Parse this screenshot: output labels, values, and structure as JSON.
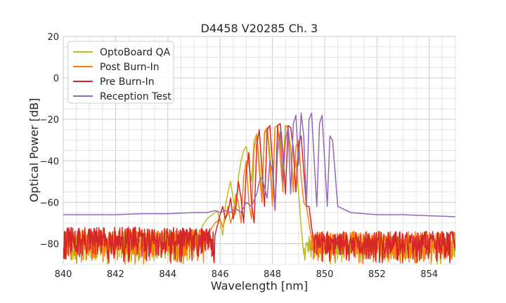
{
  "chart_data": {
    "type": "line",
    "title": "D4458 V20285 Ch. 3",
    "xlabel": "Wavelength [nm]",
    "ylabel": "Optical Power [dB]",
    "xlim": [
      840,
      855
    ],
    "ylim": [
      -90,
      20
    ],
    "xticks": [
      840,
      842,
      844,
      846,
      848,
      850,
      852,
      854
    ],
    "yticks": [
      20,
      0,
      -20,
      -40,
      -60,
      -80
    ],
    "xtick_labels": [
      "840",
      "842",
      "844",
      "846",
      "848",
      "850",
      "852",
      "854"
    ],
    "ytick_labels": [
      "20",
      "0",
      "−20",
      "−40",
      "−60",
      "−80"
    ],
    "grid": true,
    "legend_position": "top-left",
    "series": [
      {
        "name": "OptoBoard QA",
        "color": "#bcbd22",
        "noise": {
          "x_range": [
            840,
            845.3
          ],
          "y_range": [
            -90,
            -74
          ],
          "count": 380,
          "seed": 11
        },
        "noise2": {
          "x_range": [
            849.2,
            855
          ],
          "y_range": [
            -90,
            -76
          ],
          "count": 320,
          "seed": 12
        },
        "x": [
          845.3,
          845.5,
          845.7,
          845.9,
          846.0,
          846.1,
          846.2,
          846.3,
          846.4,
          846.5,
          846.6,
          846.7,
          846.8,
          846.9,
          847.0,
          847.1,
          847.2,
          847.3,
          847.4,
          847.5,
          847.6,
          847.7,
          847.8,
          847.9,
          848.0,
          848.1,
          848.2,
          848.3,
          848.4,
          848.5,
          848.6,
          848.7,
          848.8,
          848.9,
          849.0,
          849.1,
          849.2
        ],
        "y": [
          -72,
          -68,
          -66,
          -64,
          -70,
          -76,
          -62,
          -55,
          -50,
          -58,
          -66,
          -48,
          -40,
          -35,
          -33,
          -42,
          -50,
          -30,
          -27,
          -40,
          -55,
          -28,
          -24,
          -35,
          -58,
          -24,
          -23,
          -32,
          -45,
          -23,
          -24,
          -34,
          -50,
          -40,
          -55,
          -72,
          -85
        ]
      },
      {
        "name": "Post Burn-In",
        "color": "#ff7f0e",
        "noise": {
          "x_range": [
            840,
            845.6
          ],
          "y_range": [
            -90,
            -73
          ],
          "count": 380,
          "seed": 21
        },
        "noise2": {
          "x_range": [
            849.5,
            855
          ],
          "y_range": [
            -90,
            -74
          ],
          "count": 320,
          "seed": 22
        },
        "x": [
          845.6,
          845.8,
          846.0,
          846.1,
          846.2,
          846.3,
          846.4,
          846.5,
          846.6,
          846.7,
          846.8,
          846.9,
          847.0,
          847.1,
          847.2,
          847.3,
          847.4,
          847.5,
          847.6,
          847.7,
          847.8,
          847.9,
          848.0,
          848.1,
          848.2,
          848.3,
          848.4,
          848.5,
          848.6,
          848.7,
          848.8,
          848.9,
          849.0,
          849.1,
          849.2,
          849.3,
          849.4,
          849.5
        ],
        "y": [
          -74,
          -70,
          -68,
          -72,
          -68,
          -62,
          -70,
          -66,
          -56,
          -60,
          -70,
          -48,
          -40,
          -60,
          -68,
          -34,
          -28,
          -45,
          -60,
          -26,
          -24,
          -40,
          -62,
          -24,
          -23,
          -38,
          -55,
          -23,
          -24,
          -36,
          -55,
          -33,
          -30,
          -48,
          -60,
          -62,
          -70,
          -78
        ]
      },
      {
        "name": "Pre Burn-In",
        "color": "#d62728",
        "noise": {
          "x_range": [
            840,
            845.8
          ],
          "y_range": [
            -90,
            -72
          ],
          "count": 400,
          "seed": 31
        },
        "noise2": {
          "x_range": [
            849.6,
            855
          ],
          "y_range": [
            -90,
            -74
          ],
          "count": 330,
          "seed": 32
        },
        "x": [
          845.8,
          846.0,
          846.1,
          846.2,
          846.3,
          846.4,
          846.5,
          846.6,
          846.7,
          846.8,
          846.9,
          847.0,
          847.1,
          847.2,
          847.3,
          847.4,
          847.5,
          847.6,
          847.7,
          847.8,
          847.9,
          848.0,
          848.1,
          848.2,
          848.3,
          848.4,
          848.5,
          848.6,
          848.7,
          848.8,
          848.9,
          849.0,
          849.1,
          849.2,
          849.3,
          849.4,
          849.5,
          849.6
        ],
        "y": [
          -76,
          -66,
          -62,
          -68,
          -65,
          -58,
          -68,
          -62,
          -50,
          -58,
          -70,
          -45,
          -36,
          -60,
          -70,
          -32,
          -25,
          -44,
          -62,
          -25,
          -23,
          -40,
          -64,
          -23,
          -22,
          -36,
          -56,
          -23,
          -24,
          -34,
          -55,
          -32,
          -28,
          -45,
          -62,
          -62,
          -72,
          -80
        ]
      },
      {
        "name": "Reception Test",
        "color": "#9467bd",
        "x": [
          840.0,
          841.0,
          842.0,
          843.0,
          844.0,
          845.0,
          845.5,
          845.8,
          846.0,
          846.2,
          846.4,
          846.6,
          846.8,
          847.0,
          847.2,
          847.4,
          847.5,
          847.6,
          847.8,
          847.9,
          848.0,
          848.1,
          848.2,
          848.3,
          848.4,
          848.5,
          848.6,
          848.7,
          848.8,
          848.9,
          849.0,
          849.1,
          849.2,
          849.3,
          849.4,
          849.5,
          849.6,
          849.7,
          849.8,
          849.9,
          850.0,
          850.1,
          850.2,
          850.3,
          850.5,
          851.0,
          852.0,
          853.0,
          854.0,
          855.0
        ],
        "y": [
          -66,
          -66,
          -66,
          -65.5,
          -65.5,
          -65,
          -65,
          -64,
          -65,
          -64,
          -65,
          -63,
          -65,
          -60,
          -62,
          -56,
          -50,
          -48,
          -58,
          -40,
          -45,
          -64,
          -35,
          -26,
          -50,
          -30,
          -24,
          -56,
          -22,
          -18,
          -42,
          -17,
          -28,
          -62,
          -20,
          -17,
          -40,
          -62,
          -22,
          -18,
          -40,
          -62,
          -28,
          -30,
          -62,
          -65,
          -66,
          -66,
          -66.5,
          -67
        ]
      }
    ]
  }
}
